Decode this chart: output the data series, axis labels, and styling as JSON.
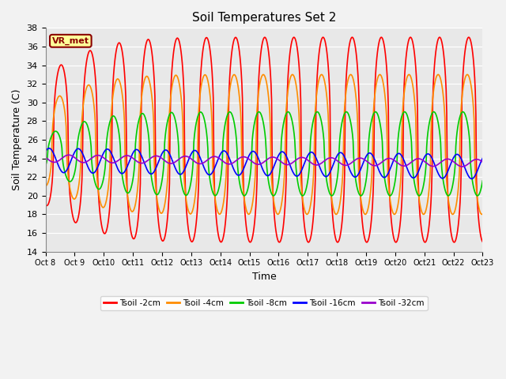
{
  "title": "Soil Temperatures Set 2",
  "xlabel": "Time",
  "ylabel": "Soil Temperature (C)",
  "ylim": [
    14,
    38
  ],
  "yticks": [
    14,
    16,
    18,
    20,
    22,
    24,
    26,
    28,
    30,
    32,
    34,
    36,
    38
  ],
  "xtick_labels": [
    "Oct 8",
    "Oct 9",
    "Oct 10",
    "Oct 11",
    "Oct 12",
    "Oct 13",
    "Oct 14",
    "Oct 15",
    "Oct 16",
    "Oct 17",
    "Oct 18",
    "Oct 19",
    "Oct 20",
    "Oct 21",
    "Oct 22",
    "Oct 23"
  ],
  "annotation_text": "VR_met",
  "annotation_fg": "#8B0000",
  "annotation_bg": "#FFFF99",
  "bg_color": "#E8E8E8",
  "fig_color": "#F2F2F2",
  "line_colors": [
    "#FF0000",
    "#FF8C00",
    "#00CC00",
    "#0000FF",
    "#9900CC"
  ],
  "line_labels": [
    "Tsoil -2cm",
    "Tsoil -4cm",
    "Tsoil -8cm",
    "Tsoil -16cm",
    "Tsoil -32cm"
  ],
  "line_width": 1.2
}
